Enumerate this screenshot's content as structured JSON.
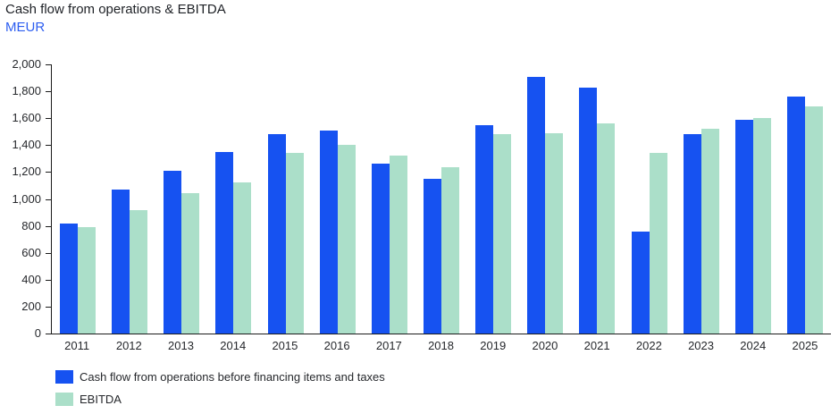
{
  "header": {
    "title": "Cash flow from operations & EBITDA",
    "subtitle": "MEUR"
  },
  "colors": {
    "cashflow": "#1652f1",
    "ebitda": "#abdfc9",
    "axis": "#1b1b1b",
    "title_text": "#1e2126",
    "subtitle_text": "#2d5ef0",
    "tick_text": "#26282c"
  },
  "chart_data": {
    "type": "bar",
    "title": "Cash flow from operations & EBITDA",
    "unit_label": "MEUR",
    "categories": [
      "2011",
      "2012",
      "2013",
      "2014",
      "2015",
      "2016",
      "2017",
      "2018",
      "2019",
      "2020",
      "2021",
      "2022",
      "2023",
      "2024",
      "2025"
    ],
    "series": [
      {
        "name": "Cash flow from operations before financing items and taxes",
        "color_key": "cashflow",
        "values": [
          815,
          1070,
          1210,
          1350,
          1480,
          1510,
          1265,
          1150,
          1550,
          1910,
          1830,
          755,
          1485,
          1590,
          1760
        ]
      },
      {
        "name": "EBITDA",
        "color_key": "ebitda",
        "values": [
          790,
          920,
          1040,
          1120,
          1340,
          1400,
          1320,
          1235,
          1480,
          1490,
          1560,
          1340,
          1520,
          1600,
          1690
        ]
      }
    ],
    "ylim": [
      0,
      2000
    ],
    "ytick_step": 200,
    "ytick_labels": [
      "0",
      "200",
      "400",
      "600",
      "800",
      "1,000",
      "1,200",
      "1,400",
      "1,600",
      "1,800",
      "2,000"
    ],
    "grid": false,
    "legend_position": "bottom-left"
  },
  "legend": {
    "items": [
      {
        "label": "Cash flow from operations before financing items and taxes",
        "color_key": "cashflow"
      },
      {
        "label": "EBITDA",
        "color_key": "ebitda"
      }
    ]
  }
}
